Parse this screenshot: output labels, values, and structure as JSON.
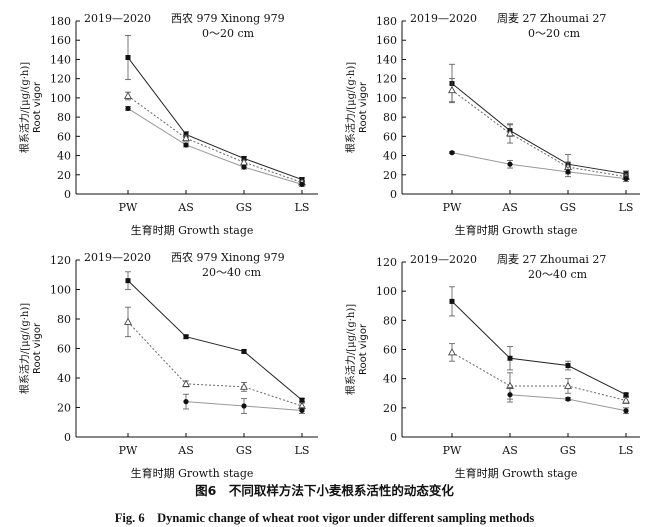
{
  "figure": {
    "caption_cn": "图6　不同取样方法下小麦根系活性的动态变化",
    "caption_en": "Fig. 6　Dynamic change of wheat root vigor under different sampling methods"
  },
  "chart_data": [
    {
      "type": "line",
      "year": "2019—2020",
      "title": "西农 979 Xinong 979",
      "subtitle": "0～20 cm",
      "xlabel": "生育时期 Growth stage",
      "ylabel": "根系活力/[μg/(g·h)]",
      "ylabel2": "Root vigor",
      "categories": [
        "PW",
        "AS",
        "GS",
        "LS"
      ],
      "ylim": [
        0,
        180
      ],
      "yticks": [
        0,
        20,
        40,
        60,
        80,
        100,
        120,
        140,
        160,
        180
      ],
      "grid": false,
      "series": [
        {
          "marker": "square",
          "line": "solid",
          "color": "#222222",
          "values": [
            142,
            62,
            37,
            15
          ],
          "errors": [
            23,
            3,
            2,
            2
          ]
        },
        {
          "marker": "triangle",
          "line": "dotted",
          "color": "#666666",
          "values": [
            102,
            58,
            33,
            12
          ],
          "errors": [
            4,
            3,
            2,
            2
          ]
        },
        {
          "marker": "circle",
          "line": "solid",
          "color": "#999999",
          "values": [
            89,
            51,
            28,
            10
          ],
          "errors": [
            2,
            2,
            2,
            2
          ]
        }
      ]
    },
    {
      "type": "line",
      "year": "2019—2020",
      "title": "周麦 27 Zhoumai 27",
      "subtitle": "0～20 cm",
      "xlabel": "生育时期 Growth stage",
      "ylabel": "根系活力/[μg/(g·h)]",
      "ylabel2": "Root vigor",
      "categories": [
        "PW",
        "AS",
        "GS",
        "LS"
      ],
      "ylim": [
        0,
        180
      ],
      "yticks": [
        0,
        20,
        40,
        60,
        80,
        100,
        120,
        140,
        160,
        180
      ],
      "grid": false,
      "series": [
        {
          "marker": "square",
          "line": "solid",
          "color": "#222222",
          "values": [
            115,
            66,
            31,
            21
          ],
          "errors": [
            20,
            6,
            10,
            3
          ]
        },
        {
          "marker": "triangle",
          "line": "dotted",
          "color": "#666666",
          "values": [
            108,
            63,
            28,
            18
          ],
          "errors": [
            12,
            10,
            5,
            3
          ]
        },
        {
          "marker": "circle",
          "line": "solid",
          "color": "#999999",
          "values": [
            43,
            31,
            23,
            16
          ],
          "errors": [
            1,
            4,
            5,
            3
          ]
        }
      ]
    },
    {
      "type": "line",
      "year": "2019—2020",
      "title": "西农 979 Xinong 979",
      "subtitle": "20～40 cm",
      "xlabel": "生育时期 Growth stage",
      "ylabel": "根系活力/[μg/(g·h)]",
      "ylabel2": "Root vigor",
      "categories": [
        "PW",
        "AS",
        "GS",
        "LS"
      ],
      "ylim": [
        0,
        120
      ],
      "yticks": [
        0,
        20,
        40,
        60,
        80,
        100,
        120
      ],
      "grid": false,
      "series": [
        {
          "marker": "square",
          "line": "solid",
          "color": "#222222",
          "values": [
            106,
            68,
            58,
            25
          ],
          "errors": [
            6,
            1,
            1,
            1
          ]
        },
        {
          "marker": "triangle",
          "line": "dotted",
          "color": "#666666",
          "values": [
            78,
            36,
            34,
            21
          ],
          "errors": [
            10,
            2,
            3,
            2
          ]
        },
        {
          "marker": "circle",
          "line": "solid",
          "color": "#999999",
          "values": [
            null,
            24,
            21,
            18
          ],
          "errors": [
            0,
            5,
            5,
            2
          ]
        }
      ]
    },
    {
      "type": "line",
      "year": "2019—2020",
      "title": "周麦 27 Zhoumai 27",
      "subtitle": "20～40 cm",
      "xlabel": "生育时期 Growth stage",
      "ylabel": "根系活力/[μg/(g·h)]",
      "ylabel2": "Root vigor",
      "categories": [
        "PW",
        "AS",
        "GS",
        "LS"
      ],
      "ylim": [
        0,
        120
      ],
      "yticks": [
        0,
        20,
        40,
        60,
        80,
        100,
        120
      ],
      "grid": false,
      "series": [
        {
          "marker": "square",
          "line": "solid",
          "color": "#222222",
          "values": [
            93,
            54,
            49,
            29
          ],
          "errors": [
            10,
            8,
            3,
            1
          ]
        },
        {
          "marker": "triangle",
          "line": "dotted",
          "color": "#666666",
          "values": [
            58,
            35,
            35,
            25
          ],
          "errors": [
            6,
            9,
            5,
            2
          ]
        },
        {
          "marker": "circle",
          "line": "solid",
          "color": "#999999",
          "values": [
            null,
            29,
            26,
            18
          ],
          "errors": [
            0,
            5,
            1,
            2
          ]
        }
      ]
    }
  ]
}
